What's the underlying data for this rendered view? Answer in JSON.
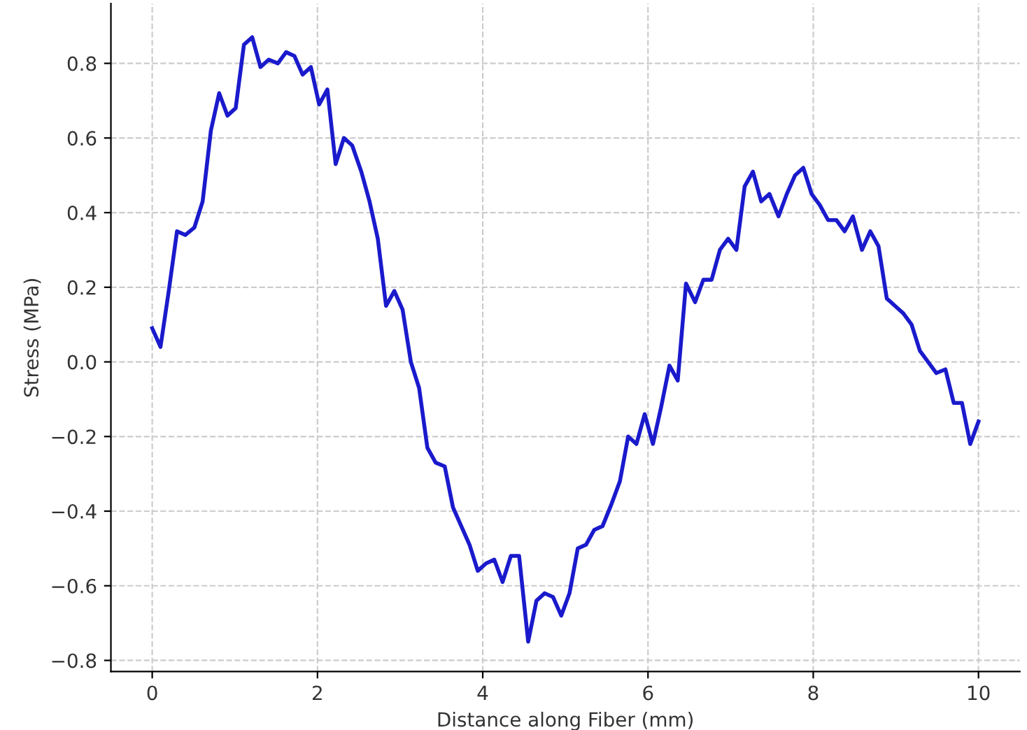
{
  "chart_data": {
    "type": "line",
    "xlabel": "Distance along Fiber (mm)",
    "ylabel": "Stress (MPa)",
    "x": [
      0,
      0.1,
      0.2,
      0.3,
      0.4,
      0.51,
      0.61,
      0.71,
      0.81,
      0.91,
      1.01,
      1.11,
      1.21,
      1.31,
      1.41,
      1.52,
      1.62,
      1.72,
      1.82,
      1.92,
      2.02,
      2.12,
      2.22,
      2.32,
      2.42,
      2.53,
      2.63,
      2.73,
      2.83,
      2.93,
      3.03,
      3.13,
      3.23,
      3.33,
      3.43,
      3.54,
      3.64,
      3.74,
      3.84,
      3.94,
      4.04,
      4.14,
      4.24,
      4.34,
      4.44,
      4.55,
      4.65,
      4.75,
      4.85,
      4.95,
      5.05,
      5.15,
      5.25,
      5.35,
      5.45,
      5.56,
      5.66,
      5.76,
      5.86,
      5.96,
      6.06,
      6.16,
      6.26,
      6.36,
      6.46,
      6.57,
      6.67,
      6.77,
      6.87,
      6.97,
      7.07,
      7.17,
      7.27,
      7.37,
      7.47,
      7.58,
      7.68,
      7.78,
      7.88,
      7.98,
      8.08,
      8.18,
      8.28,
      8.38,
      8.48,
      8.59,
      8.69,
      8.79,
      8.89,
      8.99,
      9.09,
      9.19,
      9.29,
      9.39,
      9.49,
      9.6,
      9.7,
      9.8,
      9.9,
      10
    ],
    "series": [
      {
        "color": "#1a1acc",
        "values": [
          0.09,
          0.04,
          0.19,
          0.35,
          0.34,
          0.36,
          0.43,
          0.62,
          0.72,
          0.66,
          0.68,
          0.85,
          0.87,
          0.79,
          0.81,
          0.8,
          0.83,
          0.82,
          0.77,
          0.79,
          0.69,
          0.73,
          0.53,
          0.6,
          0.58,
          0.51,
          0.43,
          0.33,
          0.15,
          0.19,
          0.14,
          0.0,
          -0.07,
          -0.23,
          -0.27,
          -0.28,
          -0.39,
          -0.44,
          -0.49,
          -0.56,
          -0.54,
          -0.53,
          -0.59,
          -0.52,
          -0.52,
          -0.75,
          -0.64,
          -0.62,
          -0.63,
          -0.68,
          -0.62,
          -0.5,
          -0.49,
          -0.45,
          -0.44,
          -0.38,
          -0.32,
          -0.2,
          -0.22,
          -0.14,
          -0.22,
          -0.12,
          -0.01,
          -0.05,
          0.21,
          0.16,
          0.22,
          0.22,
          0.3,
          0.33,
          0.3,
          0.47,
          0.51,
          0.43,
          0.45,
          0.39,
          0.45,
          0.5,
          0.52,
          0.45,
          0.42,
          0.38,
          0.38,
          0.35,
          0.39,
          0.3,
          0.35,
          0.31,
          0.17,
          0.15,
          0.13,
          0.1,
          0.03,
          0.0,
          -0.03,
          -0.02,
          -0.11,
          -0.11,
          -0.22,
          -0.16
        ]
      }
    ],
    "xlim": [
      -0.5,
      10.5
    ],
    "xticks": [
      0,
      2,
      4,
      6,
      8,
      10
    ],
    "ylim": [
      -0.83,
      0.96
    ],
    "yticks": [
      {
        "value": -0.8,
        "label": "−0.8"
      },
      {
        "value": -0.6,
        "label": "−0.6"
      },
      {
        "value": -0.4,
        "label": "−0.4"
      },
      {
        "value": -0.2,
        "label": "−0.2"
      },
      {
        "value": 0,
        "label": "0.0"
      },
      0.2,
      0.4,
      0.6,
      0.8
    ],
    "grid": true,
    "line_style": "solid",
    "marker": "none"
  }
}
